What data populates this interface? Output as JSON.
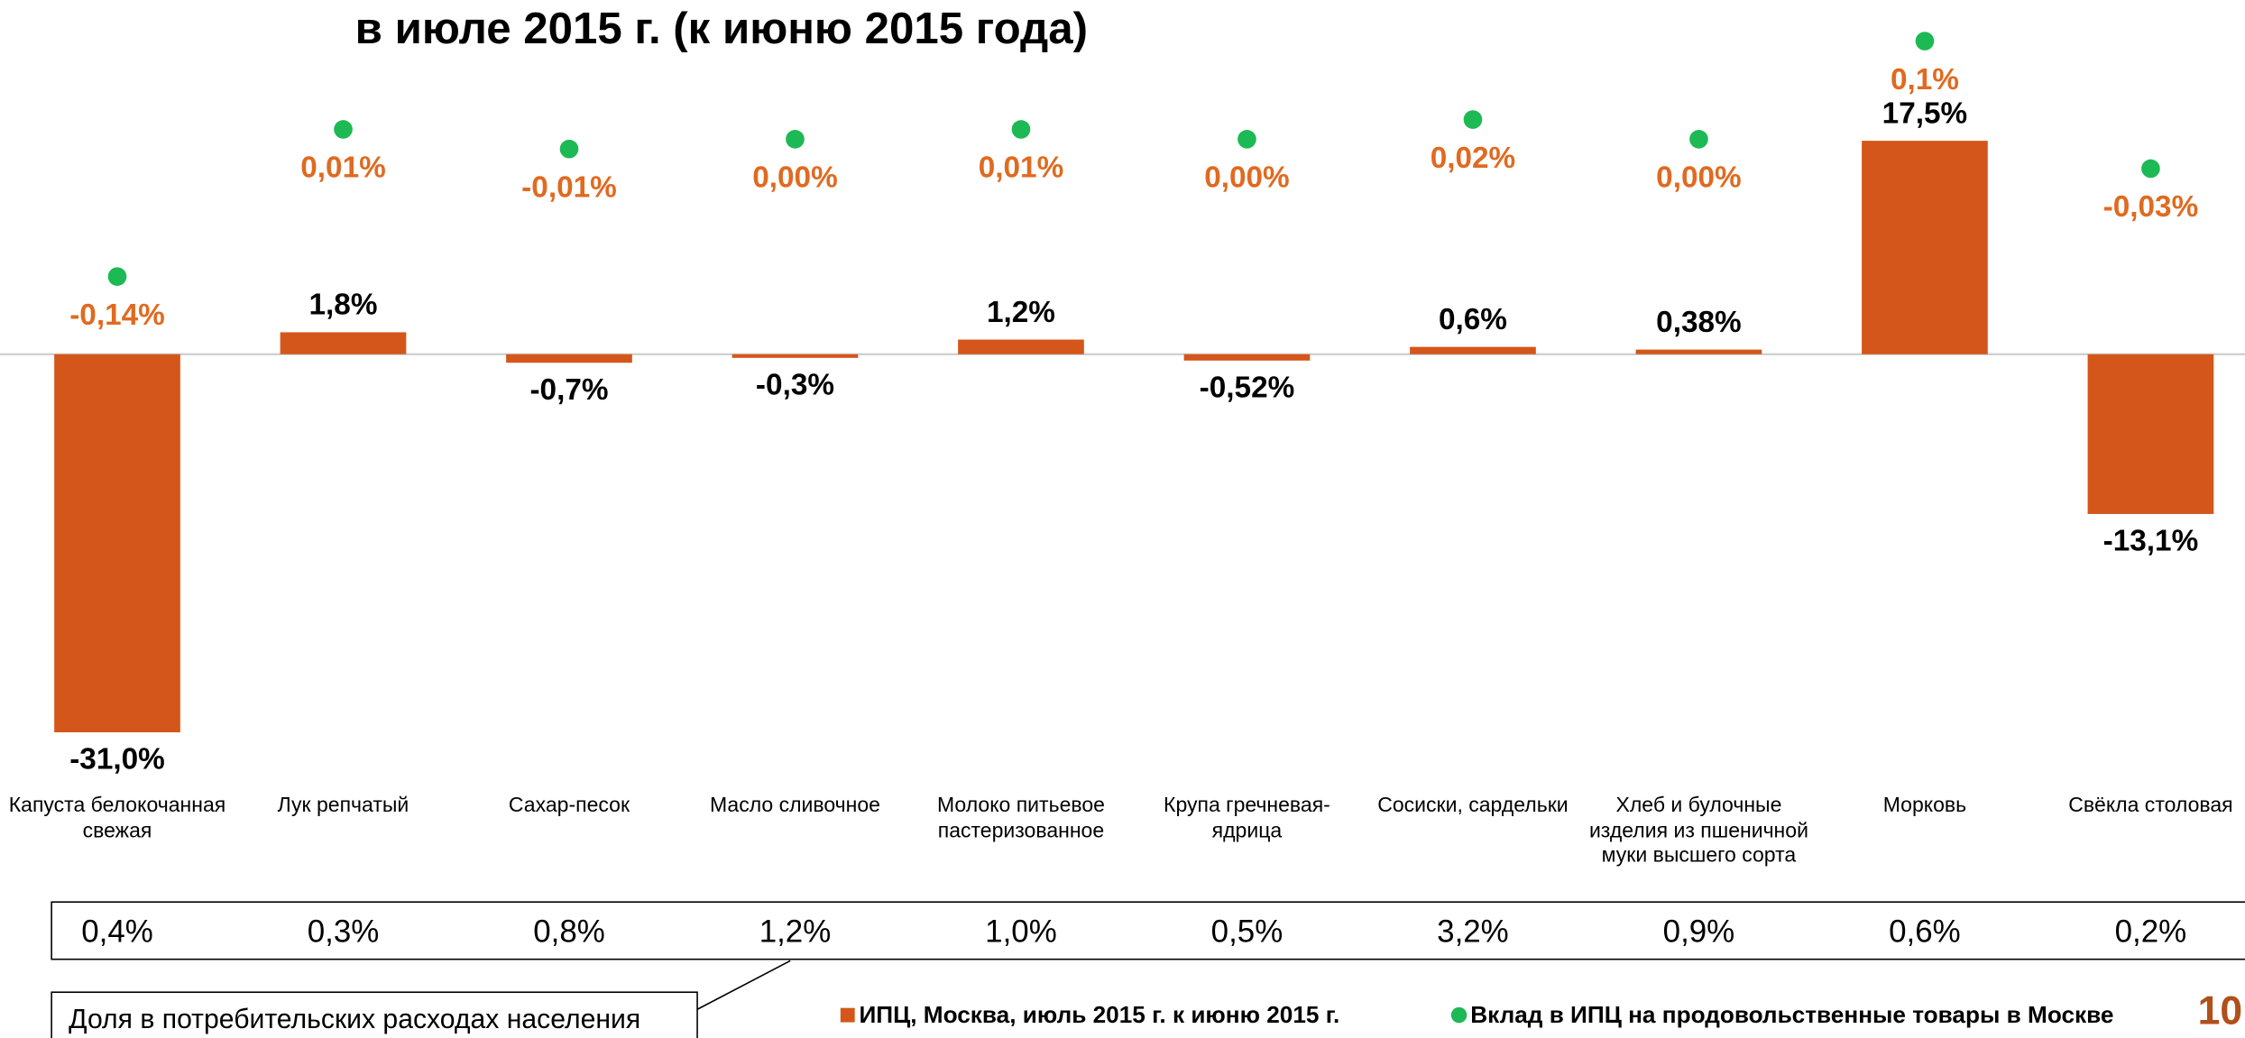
{
  "chart_data": {
    "type": "bar",
    "title": "в июле 2015 г. (к июню 2015 года)",
    "categories": [
      "Капуста белокочанная свежая",
      "Лук репчатый",
      "Сахар-песок",
      "Масло сливочное",
      "Молоко питьевое пастеризованное",
      "Крупа гречневая-ядрица",
      "Сосиски, сардельки",
      "Хлеб и булочные изделия из пшеничной муки высшего сорта",
      "Морковь",
      "Свёкла столовая"
    ],
    "series": [
      {
        "name": "ИПЦ, Москва, июль 2015 г. к июню 2015 г.",
        "color": "#d4561a",
        "values": [
          -31.0,
          1.8,
          -0.7,
          -0.3,
          1.2,
          -0.52,
          0.6,
          0.38,
          17.5,
          -13.1
        ],
        "value_labels": [
          "-31,0%",
          "1,8%",
          "-0,7%",
          "-0,3%",
          "1,2%",
          "-0,52%",
          "0,6%",
          "0,38%",
          "17,5%",
          "-13,1%"
        ]
      },
      {
        "name": "Вклад в ИПЦ на продовольственные товары в Москве",
        "color": "#1db954",
        "axis": "y2",
        "label_color": "#e06a20",
        "values": [
          -0.14,
          0.01,
          -0.01,
          0.0,
          0.01,
          0.0,
          0.02,
          0.0,
          0.1,
          -0.03
        ],
        "value_labels": [
          "-0,14%",
          "0,01%",
          "-0,01%",
          "0,00%",
          "0,01%",
          "0,00%",
          "0,02%",
          "0,00%",
          "0,1%",
          "-0,03%"
        ]
      }
    ],
    "ylim": [
      -32,
      22
    ],
    "y2lim": [
      -0.15,
      0.12
    ],
    "table": {
      "label": "Доля в потребительских расходах населения",
      "values": [
        0.4,
        0.3,
        0.8,
        1.2,
        1.0,
        0.5,
        3.2,
        0.9,
        0.6,
        0.2
      ],
      "value_labels": [
        "0,4%",
        "0,3%",
        "0,8%",
        "1,2%",
        "1,0%",
        "0,5%",
        "3,2%",
        "0,9%",
        "0,6%",
        "0,2%"
      ]
    },
    "page_number": "10"
  }
}
